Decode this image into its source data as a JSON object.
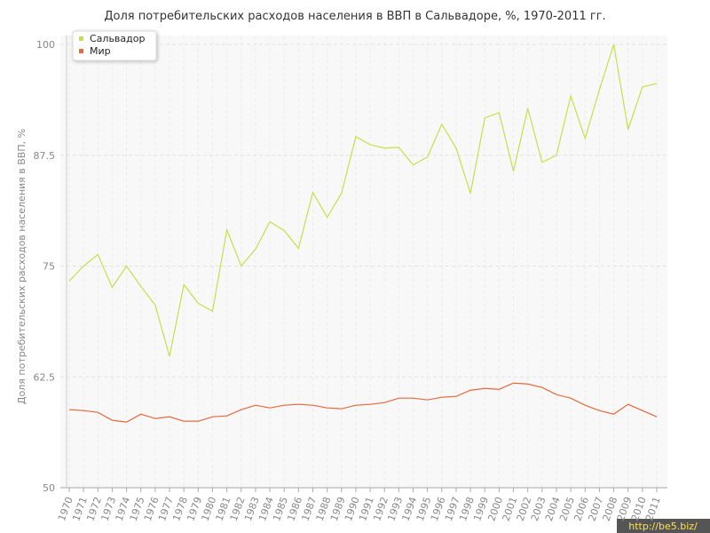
{
  "chart_data": {
    "type": "line",
    "title": "Доля потребительских расходов населения в ВВП в Сальвадоре, %, 1970-2011 гг.",
    "y_label": "Доля потребительских расходов населения в ВВП, %",
    "watermark": "http://be5.biz/",
    "categories": [
      "1970",
      "1971",
      "1972",
      "1973",
      "1974",
      "1975",
      "1976",
      "1977",
      "1978",
      "1979",
      "1980",
      "1981",
      "1982",
      "1983",
      "1984",
      "1985",
      "1986",
      "1987",
      "1988",
      "1989",
      "1990",
      "1991",
      "1992",
      "1993",
      "1994",
      "1995",
      "1996",
      "1997",
      "1998",
      "1999",
      "2000",
      "2001",
      "2002",
      "2003",
      "2004",
      "2005",
      "2006",
      "2007",
      "2008",
      "2009",
      "2010",
      "2011"
    ],
    "series": [
      {
        "name": "Сальвадор",
        "color": "#c5e04a",
        "values": [
          73.3,
          75.0,
          76.3,
          72.6,
          75.0,
          72.7,
          70.6,
          64.8,
          72.9,
          70.8,
          69.9,
          79.1,
          75.0,
          76.9,
          80.0,
          79.0,
          77.0,
          83.3,
          80.5,
          83.2,
          89.6,
          88.7,
          88.3,
          88.4,
          86.4,
          87.3,
          91.0,
          88.3,
          83.2,
          91.7,
          92.3,
          85.7,
          92.8,
          86.7,
          87.5,
          94.2,
          89.4,
          94.9,
          100,
          90.4,
          95.2,
          95.6
        ]
      },
      {
        "name": "Мир",
        "color": "#e8683a",
        "values": [
          58.8,
          58.7,
          58.5,
          57.6,
          57.4,
          58.3,
          57.8,
          58.0,
          57.5,
          57.5,
          58.0,
          58.1,
          58.8,
          59.3,
          59.0,
          59.3,
          59.4,
          59.3,
          59.0,
          58.9,
          59.3,
          59.4,
          59.6,
          60.1,
          60.1,
          59.9,
          60.2,
          60.3,
          61.0,
          61.2,
          61.1,
          61.8,
          61.7,
          61.3,
          60.5,
          60.1,
          59.3,
          58.7,
          58.3,
          59.4,
          58.7,
          58.0
        ]
      }
    ],
    "ylim": [
      50,
      100
    ],
    "yticks": [
      50,
      62.5,
      75,
      87.5,
      100
    ],
    "grid": true,
    "legend": "top-left"
  }
}
